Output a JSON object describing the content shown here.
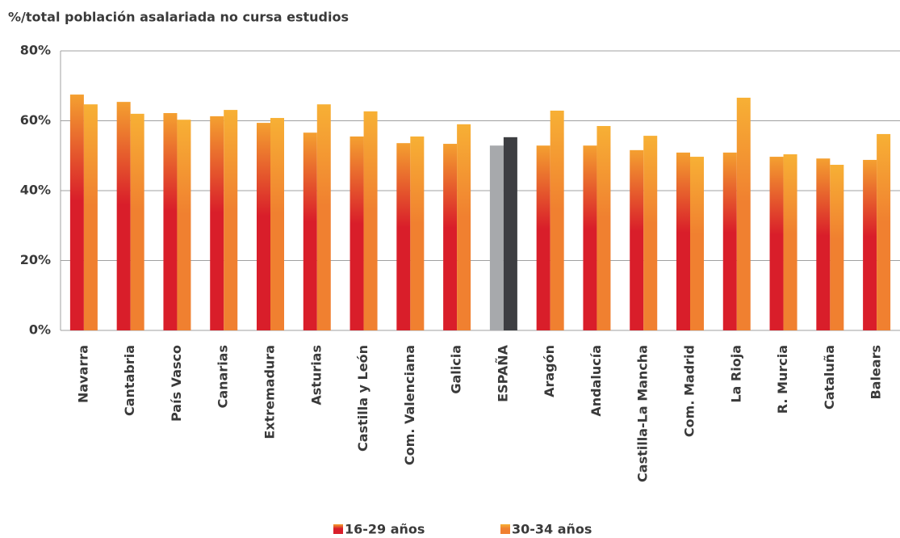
{
  "chart_data": {
    "type": "bar",
    "title": "%/total población asalariada no cursa estudios",
    "categories": [
      "Navarra",
      "Cantabria",
      "País Vasco",
      "Canarias",
      "Extremadura",
      "Asturias",
      "Castilla y León",
      "Com. Valenciana",
      "Galicia",
      "ESPAÑA",
      "Aragón",
      "Andalucía",
      "Castilla-La Mancha",
      "Com. Madrid",
      "La Rioja",
      "R. Murcia",
      "Cataluña",
      "Balears"
    ],
    "series": [
      {
        "name": "16-29 años",
        "color": "#d91e2a",
        "color_top": "#f4a030",
        "highlight_color": "#a7a9ac",
        "values": [
          67.5,
          65.4,
          62.2,
          61.3,
          59.4,
          56.6,
          55.5,
          53.6,
          53.4,
          52.9,
          52.9,
          52.9,
          51.6,
          50.9,
          50.9,
          49.7,
          49.2,
          48.8
        ]
      },
      {
        "name": "30-34 años",
        "color": "#f08030",
        "color_top": "#f7b035",
        "highlight_color": "#3d3e42",
        "values": [
          64.7,
          62.0,
          60.3,
          63.1,
          60.8,
          64.7,
          62.7,
          55.5,
          59.0,
          55.3,
          62.9,
          58.5,
          55.7,
          49.7,
          66.6,
          50.4,
          47.4,
          56.2
        ]
      }
    ],
    "highlight_index": 9,
    "ylim": [
      0,
      80
    ],
    "yticks": [
      {
        "value": 0,
        "label": "0%"
      },
      {
        "value": 20,
        "label": "20%"
      },
      {
        "value": 40,
        "label": "40%"
      },
      {
        "value": 60,
        "label": "60%"
      },
      {
        "value": 80,
        "label": "80%"
      }
    ],
    "grid": true,
    "legend": "bottom"
  }
}
